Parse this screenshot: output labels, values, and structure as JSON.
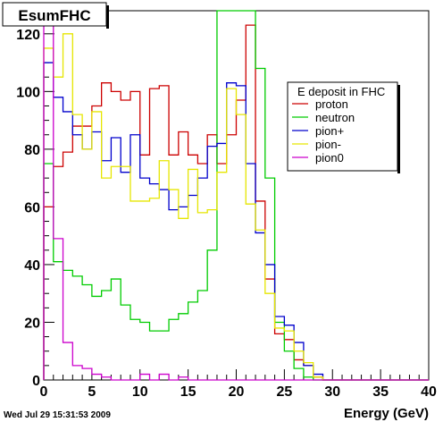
{
  "chart_data": {
    "type": "line",
    "title": "EsumFHC",
    "xlabel": "Energy (GeV)",
    "ylabel": "",
    "xlim": [
      0,
      40
    ],
    "ylim": [
      0,
      128
    ],
    "x_ticks": [
      0,
      5,
      10,
      15,
      20,
      25,
      30,
      35,
      40
    ],
    "x_tick_labels": [
      "0",
      "5",
      "10",
      "15",
      "20",
      "25",
      "30",
      "35",
      "40"
    ],
    "y_ticks": [
      0,
      20,
      40,
      60,
      80,
      100,
      120
    ],
    "y_tick_labels": [
      "0",
      "20",
      "40",
      "60",
      "80",
      "100",
      "120"
    ],
    "bin_width": 1,
    "legend": {
      "title": "E deposit in FHC",
      "placement": "upper-right"
    },
    "timestamp": "Wed Jul 29 15:31:53 2009",
    "series": [
      {
        "name": "proton",
        "color": "#cc0000",
        "values": [
          60,
          74,
          79,
          88,
          88,
          95,
          103,
          100,
          97,
          100,
          78,
          101,
          102,
          78,
          86,
          78,
          75,
          85,
          75,
          85,
          97,
          123,
          62,
          35,
          16,
          14,
          7,
          5,
          1,
          0,
          0,
          0,
          0,
          0,
          0,
          0,
          0,
          0,
          0,
          0
        ]
      },
      {
        "name": "neutron",
        "color": "#00cc00",
        "values": [
          75,
          41,
          38,
          36,
          33,
          29,
          31,
          35,
          26,
          21,
          20,
          17,
          17,
          21,
          23,
          27,
          31,
          45,
          128,
          128,
          128,
          128,
          108,
          70,
          20,
          10,
          4,
          1,
          0,
          0,
          0,
          0,
          0,
          0,
          0,
          0,
          0,
          0,
          0,
          0
        ]
      },
      {
        "name": "pion+",
        "color": "#0000cc",
        "values": [
          110,
          98,
          93,
          85,
          80,
          86,
          76,
          84,
          72,
          85,
          70,
          68,
          66,
          59,
          60,
          64,
          70,
          81,
          82,
          103,
          102,
          75,
          51,
          40,
          22,
          19,
          13,
          5,
          2,
          0,
          0,
          0,
          0,
          0,
          0,
          0,
          0,
          0,
          0,
          0
        ]
      },
      {
        "name": "pion-",
        "color": "#e6e600",
        "values": [
          115,
          105,
          120,
          92,
          80,
          93,
          70,
          74,
          74,
          62,
          62,
          63,
          76,
          66,
          56,
          73,
          58,
          59,
          72,
          101,
          92,
          61,
          52,
          30,
          18,
          17,
          10,
          6,
          1,
          0,
          0,
          0,
          0,
          0,
          0,
          0,
          0,
          0,
          0,
          0
        ]
      },
      {
        "name": "pion0",
        "color": "#cc00cc",
        "values": [
          128,
          49,
          13,
          5,
          4,
          2,
          1,
          0,
          0,
          0,
          2,
          0,
          2,
          0,
          1,
          0,
          0,
          0,
          0,
          0,
          0,
          0,
          0,
          0,
          0,
          0,
          0,
          0,
          0,
          0,
          0,
          0,
          0,
          0,
          0,
          0,
          0,
          0,
          0,
          0
        ]
      }
    ]
  }
}
